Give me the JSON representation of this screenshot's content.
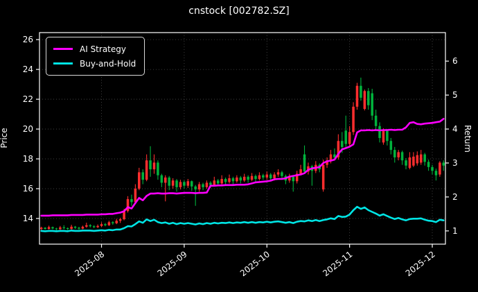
{
  "title": "cnstock [002782.SZ]",
  "colors": {
    "background": "#000000",
    "text": "#ffffff",
    "grid": "#4d4d4d",
    "spine": "#ffffff",
    "candle_up": "#fe2e2e",
    "candle_down": "#00b33c",
    "ai_strategy": "#ff00ff",
    "buy_hold": "#00e5e5"
  },
  "legend": {
    "items": [
      {
        "label": "AI Strategy",
        "color": "#ff00ff"
      },
      {
        "label": "Buy-and-Hold",
        "color": "#00e5e5"
      }
    ]
  },
  "axes": {
    "left_label": "Price",
    "right_label": "Return"
  },
  "chart_data": {
    "type": "candlestick+line",
    "title": "cnstock [002782.SZ]",
    "grid": true,
    "legend_position": "upper-left",
    "price_axis": {
      "label": "Price",
      "ticks": [
        14,
        16,
        18,
        20,
        22,
        24,
        26
      ],
      "ylim": [
        12.28,
        26.47
      ]
    },
    "return_axis": {
      "label": "Return",
      "ticks": [
        1,
        2,
        3,
        4,
        5,
        6
      ],
      "ylim": [
        0.61,
        6.84
      ]
    },
    "x_axis": {
      "tick_labels": [
        "2025-08",
        "2025-09",
        "2025-10",
        "2025-11",
        "2025-12"
      ],
      "tick_indices": [
        16,
        38,
        60,
        82,
        104
      ],
      "rotation_deg": -38
    },
    "candle_colors": {
      "up": "#fe2e2e",
      "down": "#00b33c"
    },
    "candles_format": [
      "open",
      "high",
      "low",
      "close"
    ],
    "candles": [
      [
        13.3,
        13.45,
        13.22,
        13.38
      ],
      [
        13.38,
        13.42,
        13.25,
        13.3
      ],
      [
        13.3,
        13.52,
        13.26,
        13.42
      ],
      [
        13.42,
        13.46,
        13.28,
        13.33
      ],
      [
        13.33,
        13.38,
        13.2,
        13.28
      ],
      [
        13.28,
        13.5,
        13.24,
        13.4
      ],
      [
        13.4,
        13.55,
        13.28,
        13.35
      ],
      [
        13.35,
        13.4,
        13.22,
        13.3
      ],
      [
        13.3,
        13.58,
        13.26,
        13.45
      ],
      [
        13.45,
        13.5,
        13.3,
        13.38
      ],
      [
        13.38,
        13.44,
        13.25,
        13.32
      ],
      [
        13.32,
        13.52,
        13.28,
        13.45
      ],
      [
        13.45,
        13.72,
        13.38,
        13.55
      ],
      [
        13.55,
        13.62,
        13.4,
        13.48
      ],
      [
        13.48,
        13.55,
        13.35,
        13.42
      ],
      [
        13.42,
        13.6,
        13.36,
        13.5
      ],
      [
        13.5,
        13.75,
        13.44,
        13.62
      ],
      [
        13.62,
        13.7,
        13.48,
        13.55
      ],
      [
        13.55,
        13.85,
        13.5,
        13.75
      ],
      [
        13.75,
        13.82,
        13.58,
        13.68
      ],
      [
        13.68,
        13.98,
        13.62,
        13.85
      ],
      [
        13.85,
        14.05,
        13.7,
        13.95
      ],
      [
        13.95,
        14.65,
        13.88,
        14.5
      ],
      [
        14.5,
        15.5,
        14.4,
        15.3
      ],
      [
        15.3,
        15.6,
        14.85,
        15.1
      ],
      [
        15.1,
        16.3,
        15.0,
        16.0
      ],
      [
        16.0,
        17.4,
        15.9,
        17.1
      ],
      [
        17.1,
        17.3,
        16.3,
        16.6
      ],
      [
        16.6,
        18.3,
        16.5,
        17.9
      ],
      [
        17.9,
        18.85,
        16.8,
        17.3
      ],
      [
        17.3,
        18.3,
        17.0,
        17.75
      ],
      [
        17.75,
        17.9,
        16.6,
        16.9
      ],
      [
        16.9,
        17.0,
        16.1,
        16.4
      ],
      [
        16.4,
        16.9,
        15.15,
        16.75
      ],
      [
        16.75,
        16.85,
        15.9,
        16.2
      ],
      [
        16.2,
        16.7,
        16.0,
        16.55
      ],
      [
        16.55,
        16.65,
        15.8,
        16.1
      ],
      [
        16.1,
        16.6,
        15.95,
        16.45
      ],
      [
        16.45,
        16.55,
        16.0,
        16.2
      ],
      [
        16.2,
        16.65,
        16.05,
        16.5
      ],
      [
        16.5,
        16.55,
        15.85,
        16.15
      ],
      [
        16.15,
        16.25,
        14.85,
        15.95
      ],
      [
        15.95,
        16.45,
        15.8,
        16.3
      ],
      [
        16.3,
        16.4,
        15.9,
        16.1
      ],
      [
        16.1,
        16.55,
        16.0,
        16.4
      ],
      [
        16.4,
        16.5,
        16.05,
        16.25
      ],
      [
        16.25,
        16.8,
        16.15,
        16.55
      ],
      [
        16.55,
        16.65,
        16.2,
        16.35
      ],
      [
        16.35,
        16.9,
        16.25,
        16.65
      ],
      [
        16.65,
        16.75,
        16.3,
        16.45
      ],
      [
        16.45,
        16.95,
        16.35,
        16.7
      ],
      [
        16.7,
        16.8,
        16.3,
        16.5
      ],
      [
        16.5,
        16.9,
        16.4,
        16.75
      ],
      [
        16.75,
        16.85,
        16.35,
        16.55
      ],
      [
        16.55,
        17.0,
        16.45,
        16.8
      ],
      [
        16.8,
        16.9,
        16.4,
        16.6
      ],
      [
        16.6,
        17.05,
        16.5,
        16.85
      ],
      [
        16.85,
        16.95,
        16.45,
        16.65
      ],
      [
        16.65,
        17.1,
        16.55,
        16.9
      ],
      [
        16.9,
        17.0,
        16.6,
        16.75
      ],
      [
        16.75,
        17.15,
        16.6,
        16.95
      ],
      [
        16.95,
        17.05,
        16.5,
        16.7
      ],
      [
        16.7,
        17.1,
        16.55,
        16.95
      ],
      [
        16.95,
        17.3,
        16.8,
        17.1
      ],
      [
        17.1,
        17.2,
        16.6,
        16.85
      ],
      [
        16.85,
        16.95,
        16.3,
        16.55
      ],
      [
        16.55,
        17.0,
        16.4,
        16.8
      ],
      [
        16.8,
        16.9,
        15.8,
        16.5
      ],
      [
        16.5,
        17.2,
        16.35,
        17.0
      ],
      [
        17.0,
        17.6,
        16.9,
        17.3
      ],
      [
        18.3,
        18.9,
        17.0,
        17.15
      ],
      [
        17.15,
        17.75,
        16.95,
        17.5
      ],
      [
        17.5,
        17.6,
        16.2,
        17.2
      ],
      [
        17.2,
        17.85,
        17.05,
        17.6
      ],
      [
        17.6,
        17.7,
        17.1,
        17.3
      ],
      [
        15.95,
        17.95,
        15.8,
        17.6
      ],
      [
        17.6,
        18.1,
        17.4,
        17.9
      ],
      [
        17.9,
        18.6,
        17.7,
        18.3
      ],
      [
        18.3,
        18.7,
        17.9,
        18.1
      ],
      [
        18.1,
        19.65,
        17.95,
        19.2
      ],
      [
        19.2,
        19.8,
        18.4,
        18.8
      ],
      [
        19.9,
        20.9,
        18.8,
        19.0
      ],
      [
        19.0,
        20.2,
        18.8,
        19.8
      ],
      [
        19.8,
        21.8,
        19.6,
        21.5
      ],
      [
        21.5,
        23.1,
        21.3,
        22.9
      ],
      [
        22.9,
        23.45,
        21.9,
        22.1
      ],
      [
        21.35,
        22.65,
        21.25,
        22.55
      ],
      [
        22.55,
        22.75,
        21.3,
        21.6
      ],
      [
        22.4,
        22.7,
        20.6,
        20.9
      ],
      [
        20.9,
        21.3,
        19.9,
        20.2
      ],
      [
        20.2,
        20.45,
        19.1,
        19.4
      ],
      [
        19.1,
        20.05,
        18.95,
        19.9
      ],
      [
        19.9,
        20.0,
        18.9,
        19.2
      ],
      [
        19.2,
        19.4,
        18.3,
        18.6
      ],
      [
        18.6,
        18.8,
        17.75,
        18.1
      ],
      [
        18.1,
        18.6,
        17.9,
        18.45
      ],
      [
        18.45,
        18.55,
        17.6,
        17.9
      ],
      [
        17.9,
        18.05,
        17.3,
        17.55
      ],
      [
        17.4,
        18.45,
        17.3,
        18.1
      ],
      [
        17.55,
        18.45,
        17.45,
        18.15
      ],
      [
        17.7,
        18.5,
        17.55,
        18.25
      ],
      [
        17.75,
        18.6,
        17.6,
        18.3
      ],
      [
        18.3,
        18.4,
        17.55,
        17.8
      ],
      [
        17.8,
        17.95,
        17.2,
        17.45
      ],
      [
        17.45,
        17.6,
        16.95,
        17.2
      ],
      [
        17.2,
        17.35,
        16.55,
        16.9
      ],
      [
        16.95,
        17.85,
        16.8,
        17.75
      ],
      [
        17.75,
        17.9,
        17.2,
        17.55
      ]
    ],
    "series": [
      {
        "name": "AI Strategy",
        "axis": "return",
        "color": "#ff00ff",
        "values": [
          1.45,
          1.45,
          1.45,
          1.46,
          1.46,
          1.46,
          1.46,
          1.46,
          1.47,
          1.47,
          1.47,
          1.47,
          1.48,
          1.48,
          1.48,
          1.48,
          1.49,
          1.49,
          1.5,
          1.5,
          1.52,
          1.54,
          1.58,
          1.7,
          1.66,
          1.82,
          1.97,
          1.9,
          2.03,
          2.1,
          2.1,
          2.11,
          2.1,
          2.1,
          2.11,
          2.11,
          2.1,
          2.11,
          2.12,
          2.12,
          2.12,
          2.11,
          2.12,
          2.12,
          2.13,
          2.33,
          2.33,
          2.34,
          2.34,
          2.35,
          2.35,
          2.35,
          2.36,
          2.36,
          2.36,
          2.37,
          2.4,
          2.43,
          2.44,
          2.45,
          2.46,
          2.48,
          2.52,
          2.53,
          2.53,
          2.55,
          2.6,
          2.62,
          2.64,
          2.66,
          2.7,
          2.8,
          2.84,
          2.86,
          2.88,
          3.0,
          3.05,
          3.07,
          3.1,
          3.27,
          3.4,
          3.44,
          3.48,
          3.55,
          3.9,
          3.96,
          3.96,
          3.97,
          3.96,
          3.97,
          3.96,
          3.97,
          3.97,
          3.98,
          3.97,
          3.98,
          3.98,
          4.05,
          4.18,
          4.2,
          4.15,
          4.14,
          4.16,
          4.17,
          4.18,
          4.2,
          4.22,
          4.3
        ]
      },
      {
        "name": "Buy-and-Hold",
        "axis": "return",
        "color": "#00e5e5",
        "values": [
          1.0,
          0.99,
          1.0,
          1.0,
          0.99,
          1.0,
          1.0,
          0.99,
          1.01,
          1.0,
          1.0,
          1.01,
          1.01,
          1.01,
          1.0,
          1.01,
          1.02,
          1.01,
          1.03,
          1.02,
          1.04,
          1.04,
          1.08,
          1.14,
          1.13,
          1.2,
          1.28,
          1.24,
          1.34,
          1.29,
          1.33,
          1.26,
          1.23,
          1.25,
          1.21,
          1.24,
          1.2,
          1.23,
          1.21,
          1.23,
          1.21,
          1.19,
          1.22,
          1.2,
          1.23,
          1.21,
          1.24,
          1.22,
          1.24,
          1.23,
          1.25,
          1.23,
          1.25,
          1.24,
          1.26,
          1.24,
          1.26,
          1.24,
          1.26,
          1.25,
          1.27,
          1.25,
          1.27,
          1.28,
          1.26,
          1.24,
          1.26,
          1.23,
          1.27,
          1.29,
          1.28,
          1.31,
          1.29,
          1.32,
          1.29,
          1.32,
          1.34,
          1.37,
          1.35,
          1.44,
          1.41,
          1.42,
          1.48,
          1.61,
          1.71,
          1.65,
          1.69,
          1.61,
          1.56,
          1.51,
          1.45,
          1.49,
          1.44,
          1.39,
          1.35,
          1.38,
          1.34,
          1.31,
          1.35,
          1.36,
          1.36,
          1.37,
          1.33,
          1.3,
          1.29,
          1.26,
          1.33,
          1.31
        ]
      }
    ]
  }
}
